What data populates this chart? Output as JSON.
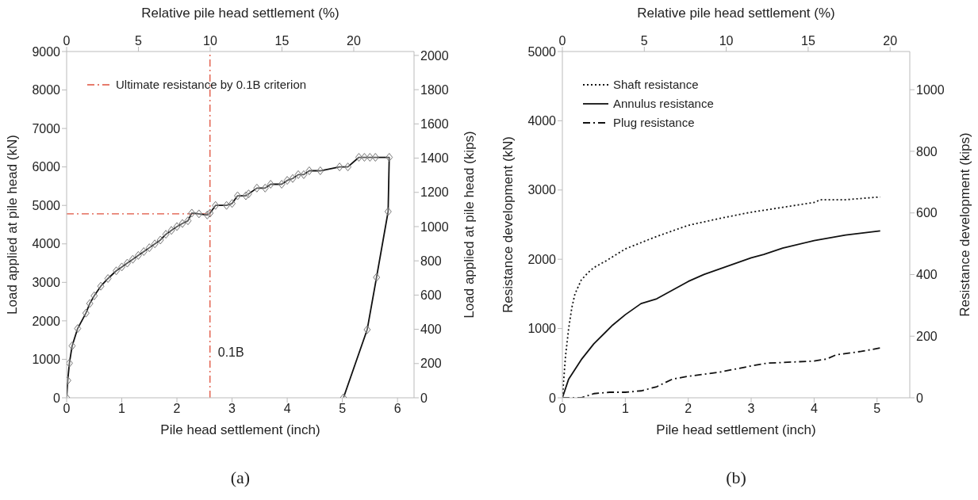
{
  "chart_data": [
    {
      "type": "line",
      "xlabel": "Pile head settlement (inch)",
      "x2label": "Relative pile head settlement (%)",
      "ylabel": "Load applied at pile head (kN)",
      "y2label": "Load applied at pile head (kips)",
      "xlim": [
        0,
        6.3
      ],
      "xticks": [
        0,
        1,
        2,
        3,
        4,
        5,
        6
      ],
      "x2lim": [
        0,
        24.2
      ],
      "x2ticks": [
        0,
        5,
        10,
        15,
        20
      ],
      "ylim": [
        0,
        9000
      ],
      "yticks": [
        0,
        1000,
        2000,
        3000,
        4000,
        5000,
        6000,
        7000,
        8000,
        9000
      ],
      "y2lim": [
        0,
        2023
      ],
      "y2ticks": [
        0,
        200,
        400,
        600,
        800,
        1000,
        1200,
        1400,
        1600,
        1800,
        2000
      ],
      "marker": "diamond",
      "legend": "top left",
      "series": [
        {
          "color": "#111111",
          "x": [
            0,
            0.02,
            0.05,
            0.1,
            0.2,
            0.35,
            0.42,
            0.5,
            0.62,
            0.75,
            0.9,
            1.0,
            1.1,
            1.2,
            1.3,
            1.4,
            1.5,
            1.6,
            1.7,
            1.8,
            1.9,
            2.0,
            2.1,
            2.2,
            2.27,
            2.4,
            2.55,
            2.6,
            2.7,
            2.9,
            3.0,
            3.1,
            3.25,
            3.3,
            3.45,
            3.6,
            3.7,
            3.9,
            4.0,
            4.1,
            4.2,
            4.3,
            4.4,
            4.6,
            4.95,
            5.1,
            5.3,
            5.4,
            5.5,
            5.6,
            5.85,
            5.83,
            5.62,
            5.45,
            5.02
          ],
          "values": [
            0,
            450,
            900,
            1350,
            1800,
            2200,
            2450,
            2650,
            2900,
            3100,
            3300,
            3400,
            3500,
            3600,
            3700,
            3800,
            3900,
            4000,
            4100,
            4250,
            4350,
            4450,
            4530,
            4600,
            4800,
            4780,
            4750,
            4800,
            5000,
            5000,
            5050,
            5250,
            5250,
            5300,
            5450,
            5450,
            5550,
            5550,
            5650,
            5700,
            5800,
            5800,
            5900,
            5900,
            6000,
            6000,
            6250,
            6250,
            6250,
            6250,
            6250,
            4840,
            3130,
            1770,
            0
          ]
        }
      ],
      "ref_lines": [
        {
          "axis": "x",
          "value": 2.6,
          "label": "0.1B",
          "color": "#e0503c",
          "line_style": "dashdot"
        },
        {
          "axis": "y",
          "value": 4780,
          "label": "Ultimate resistance by 0.1B criterion",
          "color": "#e0503c",
          "line_style": "dashdot"
        }
      ],
      "annotations": [
        "(a)"
      ]
    },
    {
      "type": "line",
      "xlabel": "Pile head settlement (inch)",
      "x2label": "Relative pile head settlement (%)",
      "ylabel": "Resistance development (kN)",
      "y2label": "Resistance development (kips)",
      "xlim": [
        0,
        5.52
      ],
      "xticks": [
        0,
        1,
        2,
        3,
        4,
        5
      ],
      "x2lim": [
        0,
        21.2
      ],
      "x2ticks": [
        0,
        5,
        10,
        15,
        20
      ],
      "ylim": [
        0,
        5000
      ],
      "yticks": [
        0,
        1000,
        2000,
        3000,
        4000,
        5000
      ],
      "y2lim": [
        0,
        1124
      ],
      "y2ticks": [
        0,
        200,
        400,
        600,
        800,
        1000
      ],
      "legend": "top left",
      "series": [
        {
          "name": "Shaft resistance",
          "color": "#111111",
          "line_style": "dotted",
          "x": [
            0,
            0.05,
            0.1,
            0.15,
            0.2,
            0.3,
            0.4,
            0.5,
            0.7,
            1.0,
            1.25,
            1.5,
            2.0,
            2.5,
            3.0,
            3.5,
            4.0,
            4.1,
            4.5,
            5.05
          ],
          "values": [
            0,
            600,
            1000,
            1300,
            1500,
            1700,
            1800,
            1880,
            1980,
            2150,
            2240,
            2330,
            2490,
            2590,
            2680,
            2750,
            2820,
            2860,
            2860,
            2900
          ]
        },
        {
          "name": "Annulus resistance",
          "color": "#111111",
          "line_style": "solid",
          "x": [
            0,
            0.1,
            0.3,
            0.5,
            0.8,
            1.0,
            1.25,
            1.5,
            2.0,
            2.25,
            2.5,
            3.0,
            3.2,
            3.5,
            4.0,
            4.5,
            5.05
          ],
          "values": [
            0,
            270,
            550,
            780,
            1050,
            1200,
            1360,
            1430,
            1680,
            1780,
            1860,
            2020,
            2070,
            2160,
            2270,
            2350,
            2410
          ]
        },
        {
          "name": "Plug resistance",
          "color": "#111111",
          "line_style": "dashdot",
          "x": [
            0,
            0.3,
            0.5,
            0.75,
            1.0,
            1.25,
            1.5,
            1.75,
            2.0,
            2.5,
            3.0,
            3.25,
            3.5,
            4.0,
            4.2,
            4.35,
            4.75,
            5.05
          ],
          "values": [
            0,
            0,
            60,
            80,
            80,
            100,
            160,
            270,
            310,
            370,
            460,
            500,
            510,
            530,
            560,
            620,
            670,
            720
          ]
        }
      ],
      "annotations": [
        "(b)"
      ]
    }
  ]
}
